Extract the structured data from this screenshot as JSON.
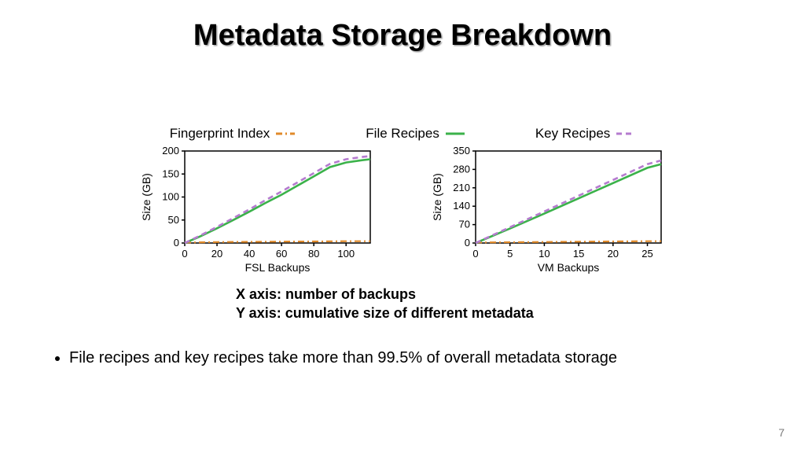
{
  "title": "Metadata Storage Breakdown",
  "legend": {
    "items": [
      {
        "label": "Fingerprint Index",
        "style": "dashdot",
        "color": "#e08a2a",
        "width": 3
      },
      {
        "label": "File Recipes",
        "style": "solid",
        "color": "#3bb24a",
        "width": 3
      },
      {
        "label": "Key Recipes",
        "style": "dashed",
        "color": "#b57bcf",
        "width": 3
      }
    ]
  },
  "axes_caption": {
    "line1": "X axis: number of backups",
    "line2": "Y axis: cumulative size of different metadata"
  },
  "bullet": "File recipes and key recipes take more than 99.5% of overall metadata storage",
  "page_number": "7",
  "chart_common": {
    "background": "#ffffff",
    "axis_color": "#000000",
    "axis_width": 1.5,
    "tick_len": 4,
    "font_size_tick": 13,
    "font_size_axis_label": 14,
    "ylabel": "Size (GB)"
  },
  "chart_left": {
    "type": "line",
    "xlabel": "FSL Backups",
    "xlim": [
      0,
      115
    ],
    "ylim": [
      0,
      200
    ],
    "xticks": [
      0,
      20,
      40,
      60,
      80,
      100
    ],
    "yticks": [
      0,
      50,
      100,
      150,
      200
    ],
    "series": [
      {
        "name": "Fingerprint Index",
        "style": "dashdot",
        "color": "#e08a2a",
        "width": 2.2,
        "x": [
          0,
          20,
          40,
          60,
          80,
          100,
          115
        ],
        "y": [
          1,
          2,
          2.5,
          3,
          3.5,
          4,
          4
        ]
      },
      {
        "name": "File Recipes",
        "style": "solid",
        "color": "#3bb24a",
        "width": 2.6,
        "x": [
          0,
          10,
          20,
          30,
          40,
          50,
          60,
          70,
          80,
          90,
          100,
          110,
          115
        ],
        "y": [
          0,
          15,
          32,
          50,
          68,
          87,
          105,
          125,
          145,
          165,
          175,
          180,
          182
        ]
      },
      {
        "name": "Key Recipes",
        "style": "dashed",
        "color": "#b57bcf",
        "width": 2.6,
        "x": [
          0,
          10,
          20,
          30,
          40,
          50,
          60,
          70,
          80,
          90,
          100,
          110,
          115
        ],
        "y": [
          0,
          17,
          35,
          54,
          73,
          93,
          112,
          132,
          152,
          172,
          182,
          187,
          189
        ]
      }
    ]
  },
  "chart_right": {
    "type": "line",
    "xlabel": "VM Backups",
    "xlim": [
      0,
      27
    ],
    "ylim": [
      0,
      350
    ],
    "xticks": [
      0,
      5,
      10,
      15,
      20,
      25
    ],
    "yticks": [
      0,
      70,
      140,
      210,
      280,
      350
    ],
    "series": [
      {
        "name": "Fingerprint Index",
        "style": "dashdot",
        "color": "#e08a2a",
        "width": 2.2,
        "x": [
          0,
          5,
          10,
          15,
          20,
          25,
          27
        ],
        "y": [
          2,
          3,
          4,
          5,
          6,
          7,
          7
        ]
      },
      {
        "name": "File Recipes",
        "style": "solid",
        "color": "#3bb24a",
        "width": 2.6,
        "x": [
          0,
          5,
          10,
          15,
          20,
          25,
          27
        ],
        "y": [
          0,
          55,
          112,
          170,
          228,
          286,
          300
        ]
      },
      {
        "name": "Key Recipes",
        "style": "dashed",
        "color": "#b57bcf",
        "width": 2.6,
        "x": [
          0,
          5,
          10,
          15,
          20,
          25,
          27
        ],
        "y": [
          0,
          60,
          120,
          180,
          240,
          300,
          314
        ]
      }
    ]
  }
}
